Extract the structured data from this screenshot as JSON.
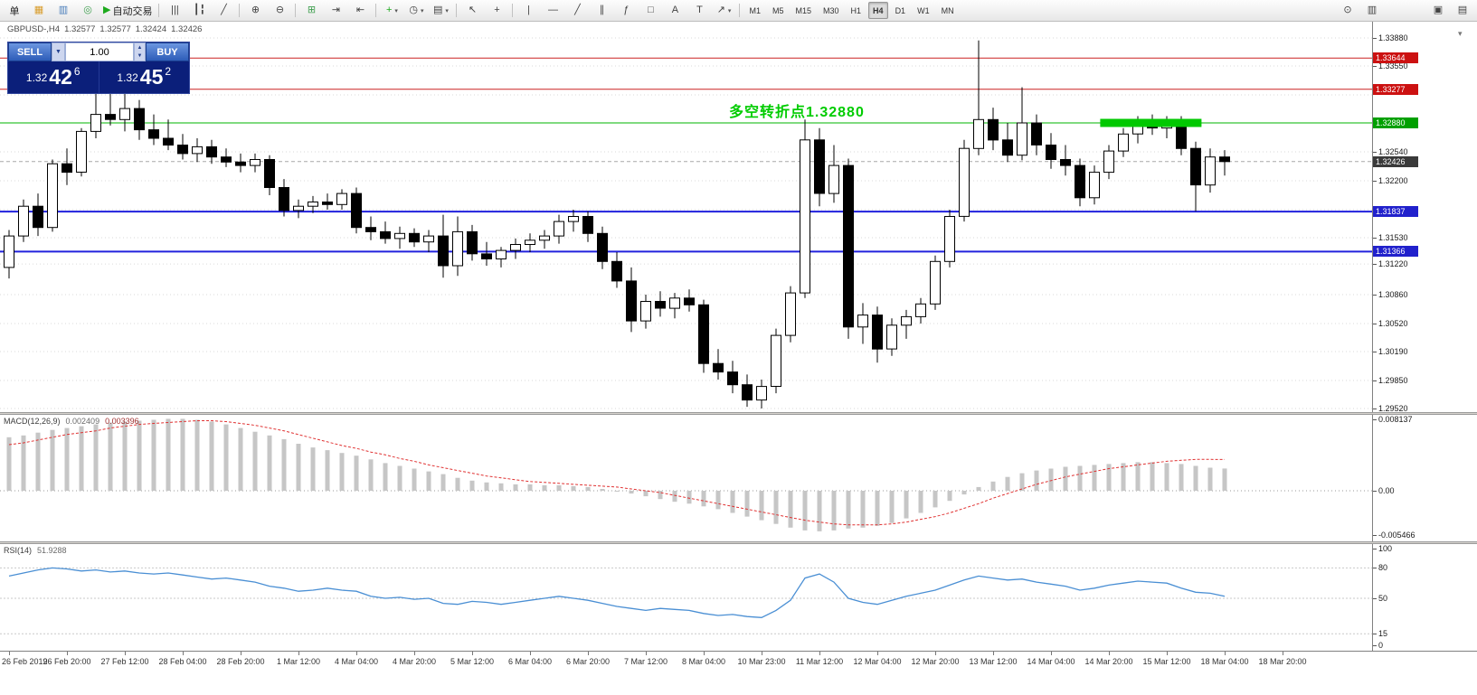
{
  "style": {
    "macd_hist": "#C6C6C6",
    "macd_signal": "#E03232",
    "rsi_line": "#4A8FD4",
    "grid": "#DADADA",
    "bull": "#FFFFFF",
    "bear": "#000000",
    "wick": "#000000",
    "annotation_green": "#00CC00"
  },
  "icons": {
    "scale_arrow": "▾"
  },
  "toolbar": {
    "groups": [
      [
        {
          "name": "new-order-button",
          "label": "单"
        },
        {
          "name": "charts-icon",
          "glyph": "▦",
          "color": "#d89c2a"
        },
        {
          "name": "market-watch-icon",
          "glyph": "▥",
          "color": "#4a7ebb"
        },
        {
          "name": "navigator-icon",
          "glyph": "◎",
          "color": "#3f9f4f"
        },
        {
          "name": "autotrading-button",
          "glyph": "▶",
          "color": "#1daa1d",
          "label": "自动交易"
        }
      ],
      [
        {
          "name": "bars-chart-icon",
          "glyph": "|||"
        },
        {
          "name": "candles-chart-icon",
          "glyph": "┃╏"
        },
        {
          "name": "line-chart-icon",
          "glyph": "╱"
        }
      ],
      [
        {
          "name": "zoom-in-icon",
          "glyph": "⊕"
        },
        {
          "name": "zoom-out-icon",
          "glyph": "⊖"
        }
      ],
      [
        {
          "name": "tile-windows-icon",
          "glyph": "⊞",
          "color": "#3f9f4f"
        },
        {
          "name": "auto-scroll-icon",
          "glyph": "⇥"
        },
        {
          "name": "chart-shift-icon",
          "glyph": "⇤"
        }
      ],
      [
        {
          "name": "add-indicator-button",
          "glyph": "+",
          "color": "#1daa1d",
          "dropdown": true
        },
        {
          "name": "periods-button",
          "glyph": "◷",
          "dropdown": true
        },
        {
          "name": "templates-button",
          "glyph": "▤",
          "dropdown": true
        }
      ],
      [
        {
          "name": "cursor-icon",
          "glyph": "↖"
        },
        {
          "name": "crosshair-icon",
          "glyph": "+"
        }
      ],
      [
        {
          "name": "vertical-line-icon",
          "glyph": "|"
        },
        {
          "name": "horizontal-line-icon",
          "glyph": "—"
        },
        {
          "name": "trendline-icon",
          "glyph": "╱"
        },
        {
          "name": "channel-icon",
          "glyph": "∥"
        },
        {
          "name": "fibonacci-icon",
          "glyph": "ƒ"
        },
        {
          "name": "shapes-icon",
          "glyph": "□"
        },
        {
          "name": "text-icon",
          "glyph": "A"
        },
        {
          "name": "text-label-icon",
          "glyph": "T"
        },
        {
          "name": "arrows-icon",
          "glyph": "↗",
          "dropdown": true
        }
      ]
    ],
    "timeframes": {
      "items": [
        "M1",
        "M5",
        "M15",
        "M30",
        "H1",
        "H4",
        "D1",
        "W1",
        "MN"
      ],
      "active": "H4"
    },
    "right_icons": [
      {
        "name": "search-icon",
        "glyph": "⊙"
      },
      {
        "name": "data-window-icon",
        "glyph": "▥"
      },
      {
        "name": "cascade-windows-icon",
        "glyph": "▣",
        "gap": true
      },
      {
        "name": "restore-window-icon",
        "glyph": "▤"
      }
    ]
  },
  "one_click": {
    "sell_label": "SELL",
    "buy_label": "BUY",
    "volume": "1.00",
    "sell_price": {
      "int": "1.32",
      "big": "42",
      "sup": "6"
    },
    "buy_price": {
      "int": "1.32",
      "big": "45",
      "sup": "2"
    },
    "dropdown_icon": "▼",
    "spin_up_icon": "▲",
    "spin_down_icon": "▼"
  },
  "chart": {
    "title": {
      "symbol_period": "GBPUSD-,H4",
      "open": "1.32577",
      "high": "1.32577",
      "low": "1.32424",
      "close": "1.32426"
    },
    "annotation": {
      "text": "多空转折点1.32880",
      "color": "#00CC00"
    },
    "ylim": [
      1.2952,
      1.3388
    ],
    "levels": [
      {
        "price": 1.33644,
        "label": "1.33644",
        "line_color": "#CC2222",
        "badge_color": "#CC1111",
        "width": 1,
        "dashed": false
      },
      {
        "price": 1.33277,
        "label": "1.33277",
        "line_color": "#CC2222",
        "badge_color": "#CC1111",
        "width": 1,
        "dashed": false
      },
      {
        "price": 1.3288,
        "label": "1.32880",
        "line_color": "#00B400",
        "badge_color": "#00A000",
        "width": 1,
        "dashed": false
      },
      {
        "price": 1.32426,
        "label": "1.32426",
        "line_color": "#A8A8A8",
        "badge_color": "#3A3A3A",
        "width": 1,
        "dashed": true
      },
      {
        "price": 1.31837,
        "label": "1.31837",
        "line_color": "#2121DD",
        "badge_color": "#2121CC",
        "width": 2,
        "dashed": false
      },
      {
        "price": 1.31366,
        "label": "1.31366",
        "line_color": "#2121DD",
        "badge_color": "#2121CC",
        "width": 2,
        "dashed": false
      }
    ],
    "highlight_zone": {
      "price": 1.3288,
      "from_candle": 75.4,
      "to_candle": 82.4,
      "thickness": 9,
      "color": "#00C800"
    },
    "price_axis": {
      "labels": [
        {
          "v": 1.3388,
          "t": "1.33880"
        },
        {
          "v": 1.3355,
          "t": "1.33550"
        },
        {
          "v": 1.3254,
          "t": "1.32540"
        },
        {
          "v": 1.322,
          "t": "1.32200"
        },
        {
          "v": 1.3153,
          "t": "1.31530"
        },
        {
          "v": 1.3122,
          "t": "1.31220"
        },
        {
          "v": 1.3086,
          "t": "1.30860"
        },
        {
          "v": 1.3052,
          "t": "1.30520"
        },
        {
          "v": 1.3019,
          "t": "1.30190"
        },
        {
          "v": 1.2985,
          "t": "1.29850"
        },
        {
          "v": 1.2952,
          "t": "1.29520"
        }
      ],
      "grid": [
        1.3388,
        1.3355,
        1.3321,
        1.3288,
        1.3254,
        1.322,
        1.3186,
        1.3153,
        1.3122,
        1.3086,
        1.3052,
        1.3019,
        1.2985,
        1.2952
      ]
    }
  },
  "panels": {
    "macd": {
      "label": "MACD(12,26,9)",
      "value1": "0.002409",
      "value2": "0.003396",
      "axis": [
        {
          "v": 0.008137,
          "t": "0.008137"
        },
        {
          "v": 0,
          "t": "0.00"
        },
        {
          "v": -0.005466,
          "t": "-0.005466"
        }
      ]
    },
    "rsi": {
      "label": "RSI(14)",
      "value": "51.9288",
      "axis": [
        {
          "v": 100,
          "t": "100"
        },
        {
          "v": 80,
          "t": "80"
        },
        {
          "v": 50,
          "t": "50"
        },
        {
          "v": 15,
          "t": "15"
        },
        {
          "v": 0,
          "t": "0"
        }
      ],
      "levels": [
        80,
        50,
        15
      ]
    }
  },
  "time_axis": {
    "labels": [
      "26 Feb 2019",
      "26 Feb 20:00",
      "27 Feb 12:00",
      "28 Feb 04:00",
      "28 Feb 20:00",
      "1 Mar 12:00",
      "4 Mar 04:00",
      "4 Mar 20:00",
      "5 Mar 12:00",
      "6 Mar 04:00",
      "6 Mar 20:00",
      "7 Mar 12:00",
      "8 Mar 04:00",
      "10 Mar 23:00",
      "11 Mar 12:00",
      "12 Mar 04:00",
      "12 Mar 20:00",
      "13 Mar 12:00",
      "14 Mar 04:00",
      "14 Mar 20:00",
      "15 Mar 12:00",
      "18 Mar 04:00",
      "18 Mar 20:00"
    ]
  },
  "chart_data": [
    {
      "type": "candlestick",
      "symbol": "GBPUSD-",
      "timeframe": "H4",
      "ylim": [
        1.2952,
        1.3388
      ],
      "candles": [
        [
          1.3118,
          1.3162,
          1.3105,
          1.3155
        ],
        [
          1.3155,
          1.3198,
          1.3148,
          1.319
        ],
        [
          1.319,
          1.3205,
          1.3155,
          1.3165
        ],
        [
          1.3165,
          1.3245,
          1.316,
          1.324
        ],
        [
          1.324,
          1.3258,
          1.3215,
          1.323
        ],
        [
          1.323,
          1.3282,
          1.3225,
          1.3278
        ],
        [
          1.3278,
          1.335,
          1.327,
          1.3298
        ],
        [
          1.3298,
          1.3335,
          1.3285,
          1.3292
        ],
        [
          1.3292,
          1.3324,
          1.3278,
          1.3305
        ],
        [
          1.3305,
          1.3315,
          1.3268,
          1.328
        ],
        [
          1.328,
          1.3298,
          1.3262,
          1.327
        ],
        [
          1.327,
          1.3292,
          1.3256,
          1.3262
        ],
        [
          1.3262,
          1.3275,
          1.3245,
          1.3252
        ],
        [
          1.3252,
          1.327,
          1.3242,
          1.326
        ],
        [
          1.326,
          1.3268,
          1.324,
          1.3248
        ],
        [
          1.3248,
          1.3258,
          1.3236,
          1.3242
        ],
        [
          1.3242,
          1.3252,
          1.323,
          1.3238
        ],
        [
          1.3238,
          1.3252,
          1.323,
          1.3245
        ],
        [
          1.3245,
          1.325,
          1.3203,
          1.3212
        ],
        [
          1.3212,
          1.3222,
          1.3178,
          1.3185
        ],
        [
          1.3185,
          1.3198,
          1.3176,
          1.319
        ],
        [
          1.319,
          1.3202,
          1.3182,
          1.3195
        ],
        [
          1.3195,
          1.3205,
          1.3186,
          1.3192
        ],
        [
          1.3192,
          1.321,
          1.3186,
          1.3205
        ],
        [
          1.3205,
          1.3212,
          1.3158,
          1.3165
        ],
        [
          1.3165,
          1.3178,
          1.315,
          1.316
        ],
        [
          1.316,
          1.3172,
          1.3146,
          1.3152
        ],
        [
          1.3152,
          1.3166,
          1.314,
          1.3158
        ],
        [
          1.3158,
          1.3164,
          1.3142,
          1.3148
        ],
        [
          1.3148,
          1.3162,
          1.3136,
          1.3155
        ],
        [
          1.3155,
          1.318,
          1.3106,
          1.312
        ],
        [
          1.312,
          1.3178,
          1.3108,
          1.316
        ],
        [
          1.316,
          1.3168,
          1.3126,
          1.3134
        ],
        [
          1.3134,
          1.3148,
          1.312,
          1.3128
        ],
        [
          1.3128,
          1.3142,
          1.3118,
          1.3138
        ],
        [
          1.3138,
          1.3152,
          1.3128,
          1.3145
        ],
        [
          1.3145,
          1.3158,
          1.3136,
          1.315
        ],
        [
          1.315,
          1.3162,
          1.314,
          1.3155
        ],
        [
          1.3155,
          1.318,
          1.3146,
          1.3172
        ],
        [
          1.3172,
          1.3186,
          1.316,
          1.3178
        ],
        [
          1.3178,
          1.3184,
          1.3148,
          1.3158
        ],
        [
          1.3158,
          1.3166,
          1.3116,
          1.3125
        ],
        [
          1.3125,
          1.3136,
          1.3094,
          1.3102
        ],
        [
          1.3102,
          1.3118,
          1.3042,
          1.3055
        ],
        [
          1.3055,
          1.3086,
          1.3046,
          1.3078
        ],
        [
          1.3078,
          1.309,
          1.306,
          1.307
        ],
        [
          1.307,
          1.3088,
          1.3058,
          1.3082
        ],
        [
          1.3082,
          1.3092,
          1.3066,
          1.3074
        ],
        [
          1.3074,
          1.308,
          1.2994,
          1.3005
        ],
        [
          1.3005,
          1.3022,
          1.2986,
          1.2995
        ],
        [
          1.2995,
          1.3008,
          1.297,
          1.298
        ],
        [
          1.298,
          1.2992,
          1.2954,
          1.2962
        ],
        [
          1.2962,
          1.2986,
          1.2952,
          1.2978
        ],
        [
          1.2978,
          1.3046,
          1.297,
          1.3038
        ],
        [
          1.3038,
          1.3096,
          1.303,
          1.3088
        ],
        [
          1.3088,
          1.3292,
          1.3082,
          1.3268
        ],
        [
          1.3268,
          1.3282,
          1.319,
          1.3205
        ],
        [
          1.3205,
          1.3262,
          1.3194,
          1.3238
        ],
        [
          1.3238,
          1.3246,
          1.3034,
          1.3048
        ],
        [
          1.3048,
          1.3076,
          1.3028,
          1.3062
        ],
        [
          1.3062,
          1.3072,
          1.3006,
          1.3022
        ],
        [
          1.3022,
          1.3058,
          1.3014,
          1.305
        ],
        [
          1.305,
          1.3068,
          1.3034,
          1.306
        ],
        [
          1.306,
          1.3082,
          1.3052,
          1.3075
        ],
        [
          1.3075,
          1.3132,
          1.3068,
          1.3125
        ],
        [
          1.3125,
          1.3186,
          1.3118,
          1.3178
        ],
        [
          1.3178,
          1.3268,
          1.3172,
          1.3258
        ],
        [
          1.3258,
          1.3385,
          1.325,
          1.3292
        ],
        [
          1.3292,
          1.3306,
          1.3256,
          1.3268
        ],
        [
          1.3268,
          1.3288,
          1.3242,
          1.325
        ],
        [
          1.325,
          1.333,
          1.3244,
          1.3288
        ],
        [
          1.3288,
          1.3298,
          1.325,
          1.3262
        ],
        [
          1.3262,
          1.3276,
          1.3234,
          1.3245
        ],
        [
          1.3245,
          1.3262,
          1.3226,
          1.3238
        ],
        [
          1.3238,
          1.3246,
          1.319,
          1.32
        ],
        [
          1.32,
          1.3238,
          1.3192,
          1.323
        ],
        [
          1.323,
          1.3262,
          1.3222,
          1.3255
        ],
        [
          1.3255,
          1.3282,
          1.3248,
          1.3275
        ],
        [
          1.3275,
          1.3296,
          1.3264,
          1.3288
        ],
        [
          1.3288,
          1.3298,
          1.3274,
          1.3282
        ],
        [
          1.3282,
          1.3296,
          1.327,
          1.329
        ],
        [
          1.329,
          1.3296,
          1.325,
          1.3258
        ],
        [
          1.3258,
          1.3266,
          1.3184,
          1.3215
        ],
        [
          1.3215,
          1.3258,
          1.3206,
          1.3248
        ],
        [
          1.3248,
          1.3256,
          1.3226,
          1.32426
        ]
      ]
    },
    {
      "type": "bar",
      "name": "MACD(12,26,9)",
      "params": [
        12,
        26,
        9
      ],
      "ylim": [
        -0.005466,
        0.008137
      ],
      "current": {
        "macd": 0.002409,
        "signal": 0.003396
      },
      "values": [
        0.0058,
        0.006,
        0.0063,
        0.0066,
        0.0068,
        0.007,
        0.0072,
        0.0074,
        0.0075,
        0.0076,
        0.0077,
        0.0078,
        0.0078,
        0.0077,
        0.0075,
        0.0072,
        0.0068,
        0.0064,
        0.006,
        0.0056,
        0.0051,
        0.0047,
        0.0044,
        0.0041,
        0.0038,
        0.0034,
        0.003,
        0.0027,
        0.0024,
        0.0021,
        0.0018,
        0.0014,
        0.0011,
        0.0009,
        0.0008,
        0.0007,
        0.0007,
        0.0006,
        0.0006,
        0.0005,
        0.0004,
        0.0002,
        0.0,
        -0.0003,
        -0.0006,
        -0.0009,
        -0.0012,
        -0.0014,
        -0.0017,
        -0.002,
        -0.0024,
        -0.0028,
        -0.0032,
        -0.0036,
        -0.004,
        -0.0043,
        -0.0044,
        -0.0043,
        -0.0041,
        -0.004,
        -0.0038,
        -0.0035,
        -0.003,
        -0.0024,
        -0.0018,
        -0.0011,
        -0.0004,
        0.0004,
        0.001,
        0.0015,
        0.0019,
        0.0022,
        0.0024,
        0.0026,
        0.0027,
        0.0028,
        0.0029,
        0.003,
        0.0031,
        0.0031,
        0.003,
        0.0029,
        0.0027,
        0.0025,
        0.002409
      ],
      "signal": [
        0.005,
        0.0052,
        0.0055,
        0.0058,
        0.0061,
        0.0063,
        0.0065,
        0.0068,
        0.007,
        0.0072,
        0.0073,
        0.0074,
        0.0075,
        0.0076,
        0.0076,
        0.0075,
        0.0073,
        0.0071,
        0.0068,
        0.0065,
        0.0061,
        0.0057,
        0.0053,
        0.0049,
        0.0046,
        0.0042,
        0.0039,
        0.0035,
        0.0032,
        0.0028,
        0.0025,
        0.0022,
        0.0019,
        0.0016,
        0.0014,
        0.0012,
        0.001,
        0.0009,
        0.0008,
        0.0007,
        0.0006,
        0.0005,
        0.0004,
        0.0002,
        0.0,
        -0.0002,
        -0.0005,
        -0.0008,
        -0.0011,
        -0.0014,
        -0.0017,
        -0.002,
        -0.0023,
        -0.0026,
        -0.0029,
        -0.0032,
        -0.0034,
        -0.0036,
        -0.0037,
        -0.0037,
        -0.0037,
        -0.0036,
        -0.0034,
        -0.0031,
        -0.0028,
        -0.0024,
        -0.0019,
        -0.0014,
        -0.0008,
        -0.0003,
        0.0002,
        0.0007,
        0.0011,
        0.0015,
        0.0018,
        0.0021,
        0.0024,
        0.0026,
        0.0028,
        0.003,
        0.0032,
        0.0033,
        0.0034,
        0.0034,
        0.003396
      ]
    },
    {
      "type": "line",
      "name": "RSI(14)",
      "ylim": [
        0,
        100
      ],
      "current": 51.9288,
      "values": [
        72,
        75,
        78,
        80,
        79,
        77,
        78,
        76,
        77,
        75,
        74,
        75,
        73,
        71,
        69,
        70,
        68,
        66,
        62,
        60,
        57,
        58,
        60,
        58,
        57,
        52,
        50,
        51,
        49,
        50,
        45,
        44,
        47,
        46,
        44,
        46,
        48,
        50,
        52,
        50,
        48,
        45,
        42,
        40,
        38,
        40,
        39,
        38,
        35,
        33,
        34,
        32,
        31,
        38,
        48,
        70,
        74,
        66,
        50,
        46,
        44,
        48,
        52,
        55,
        58,
        63,
        68,
        72,
        70,
        68,
        69,
        66,
        64,
        62,
        58,
        60,
        63,
        65,
        67,
        66,
        65,
        60,
        56,
        55,
        51.93
      ]
    }
  ]
}
